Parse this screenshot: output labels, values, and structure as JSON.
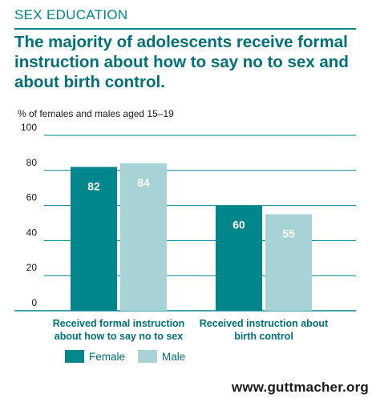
{
  "header": {
    "section": "SEX EDUCATION",
    "title": "The majority of adolescents receive formal instruction about how to say no to sex and about birth control."
  },
  "footer": {
    "url": "www.guttmacher.org"
  },
  "colors": {
    "female": "#00868b",
    "male": "#a7d3d6",
    "accent": "#00707a"
  },
  "chart_data": {
    "type": "bar",
    "ylabel": "% of females and males aged 15–19",
    "ylim": [
      0,
      100
    ],
    "yticks": [
      0,
      20,
      40,
      60,
      80,
      100
    ],
    "grid": true,
    "legend": "bottom-left",
    "categories": [
      [
        "Received formal instruction",
        "about how to say no to sex"
      ],
      [
        "Received instruction about",
        "birth control"
      ]
    ],
    "series": [
      {
        "name": "Female",
        "values": [
          82,
          60
        ]
      },
      {
        "name": "Male",
        "values": [
          84,
          55
        ]
      }
    ]
  }
}
